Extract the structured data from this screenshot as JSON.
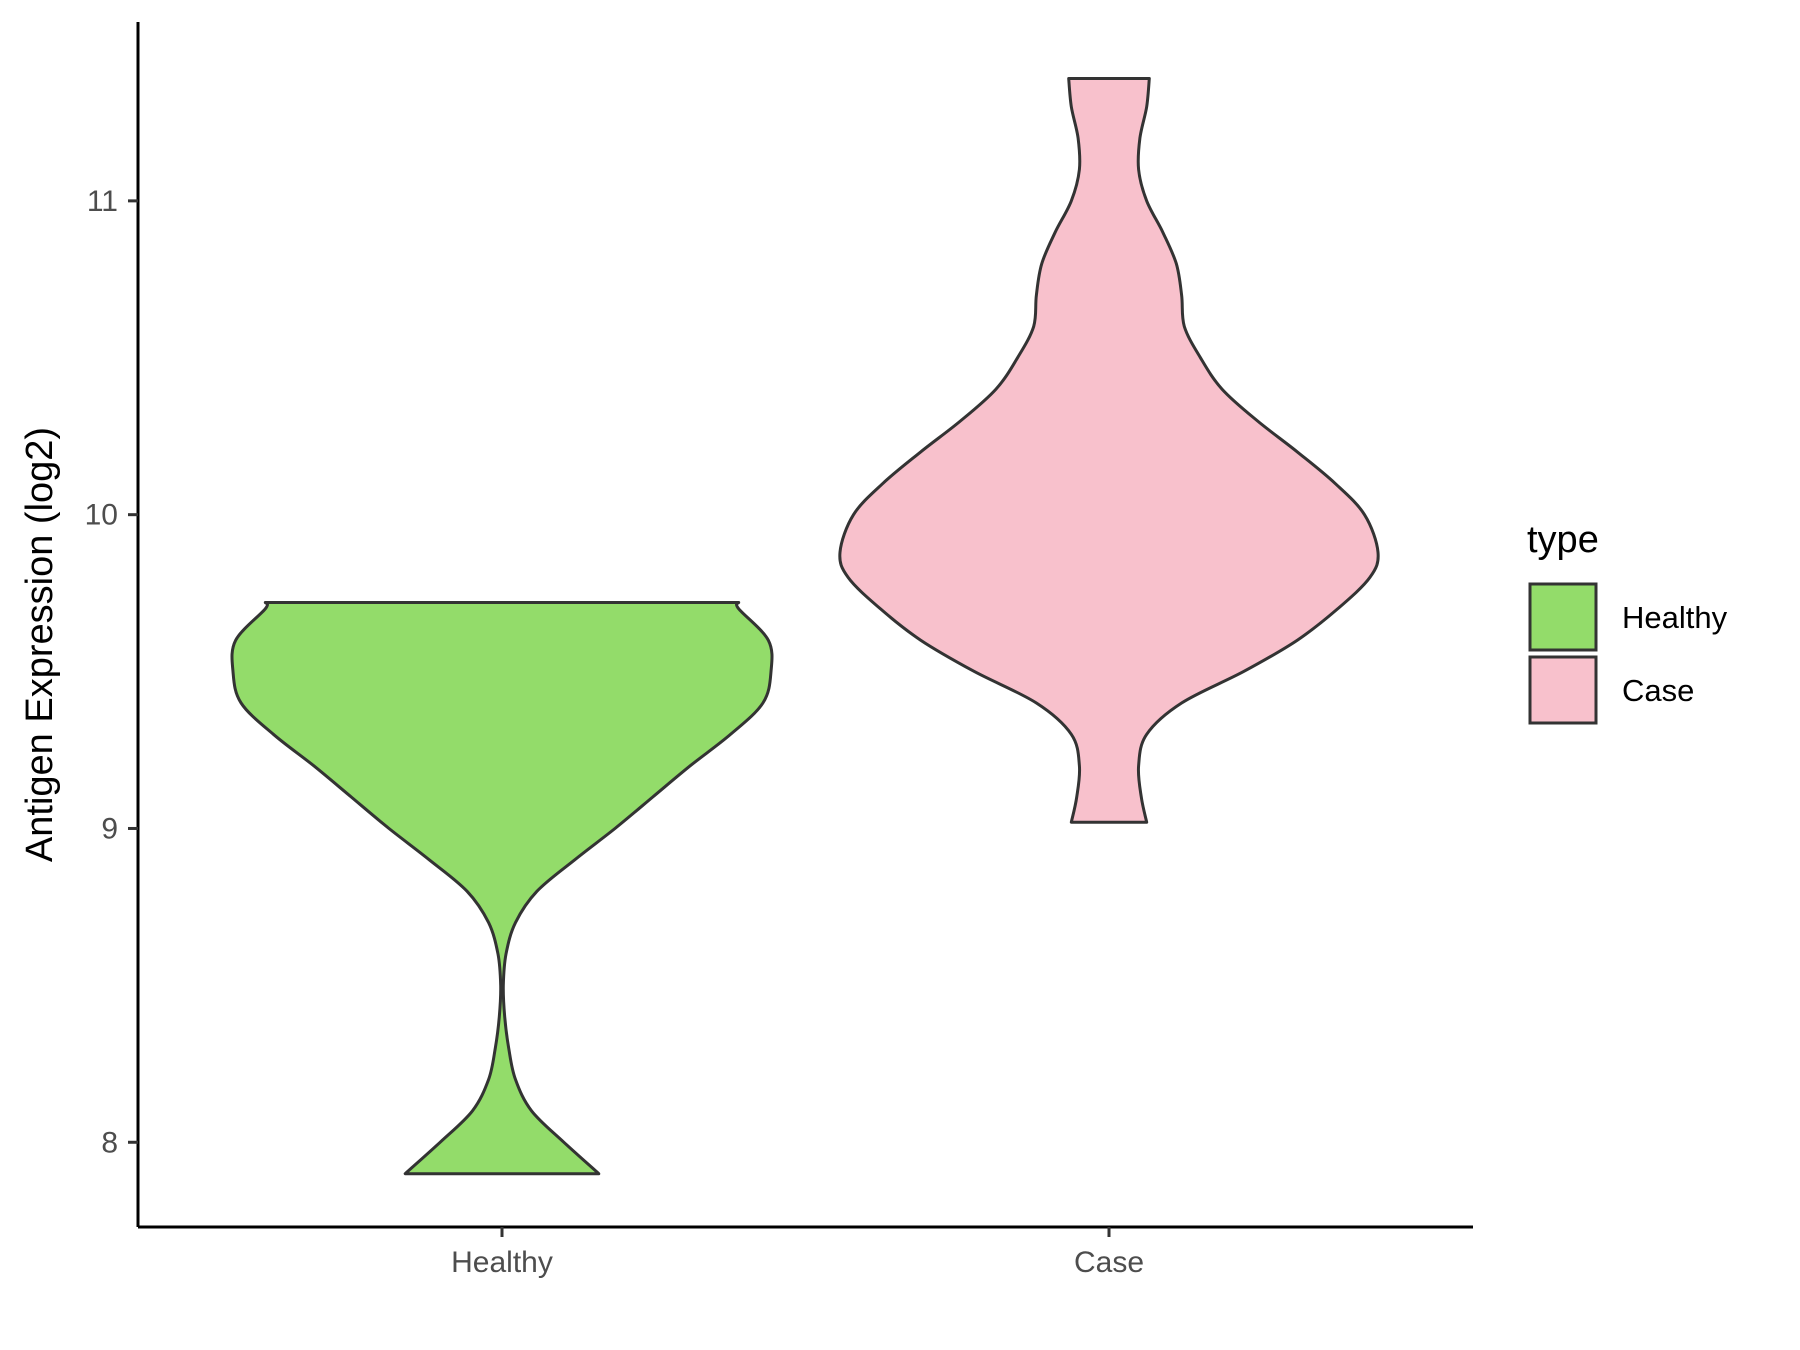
{
  "chart_data": {
    "type": "violin",
    "xlabel": "",
    "ylabel": "Antigen Expression (log2)",
    "ylim": [
      7.73,
      11.57
    ],
    "yticks": [
      8,
      9,
      10,
      11
    ],
    "categories": [
      "Healthy",
      "Case"
    ],
    "grid": false,
    "legend": {
      "title": "type",
      "placement": "right",
      "entries": [
        {
          "label": "Healthy",
          "color": "#93DC6A"
        },
        {
          "label": "Case",
          "color": "#F8C1CC"
        }
      ]
    },
    "series": [
      {
        "category": "Healthy",
        "color": "#93DC6A",
        "min": 7.9,
        "max": 9.72,
        "density": [
          [
            7.9,
            0.36
          ],
          [
            8.0,
            0.23
          ],
          [
            8.1,
            0.11
          ],
          [
            8.2,
            0.05
          ],
          [
            8.3,
            0.025
          ],
          [
            8.4,
            0.01
          ],
          [
            8.5,
            0.005
          ],
          [
            8.6,
            0.015
          ],
          [
            8.7,
            0.05
          ],
          [
            8.8,
            0.13
          ],
          [
            8.9,
            0.27
          ],
          [
            9.0,
            0.42
          ],
          [
            9.1,
            0.56
          ],
          [
            9.2,
            0.7
          ],
          [
            9.3,
            0.85
          ],
          [
            9.4,
            0.97
          ],
          [
            9.5,
            1.0
          ],
          [
            9.6,
            0.99
          ],
          [
            9.7,
            0.88
          ],
          [
            9.72,
            0.88
          ]
        ]
      },
      {
        "category": "Case",
        "color": "#F8C1CC",
        "min": 9.02,
        "max": 11.39,
        "density": [
          [
            9.02,
            0.14
          ],
          [
            9.1,
            0.12
          ],
          [
            9.2,
            0.11
          ],
          [
            9.3,
            0.14
          ],
          [
            9.4,
            0.27
          ],
          [
            9.5,
            0.5
          ],
          [
            9.6,
            0.7
          ],
          [
            9.7,
            0.85
          ],
          [
            9.8,
            0.97
          ],
          [
            9.88,
            1.0
          ],
          [
            10.0,
            0.95
          ],
          [
            10.1,
            0.84
          ],
          [
            10.2,
            0.7
          ],
          [
            10.3,
            0.55
          ],
          [
            10.4,
            0.42
          ],
          [
            10.5,
            0.34
          ],
          [
            10.6,
            0.28
          ],
          [
            10.7,
            0.27
          ],
          [
            10.8,
            0.25
          ],
          [
            10.9,
            0.2
          ],
          [
            11.0,
            0.14
          ],
          [
            11.1,
            0.11
          ],
          [
            11.2,
            0.115
          ],
          [
            11.3,
            0.14
          ],
          [
            11.39,
            0.15
          ]
        ]
      }
    ]
  }
}
